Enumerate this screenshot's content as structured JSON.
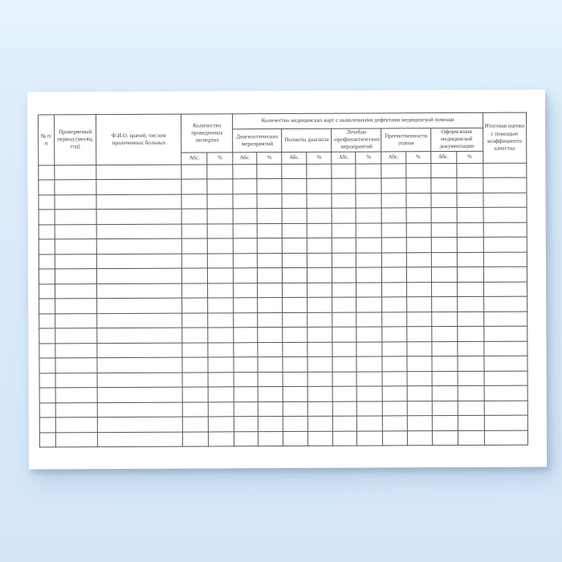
{
  "document": {
    "kind": "blank medical quality-control register form",
    "paper_color": "#ffffff",
    "background_top_color": "#e9f3fc",
    "background_bottom_color": "#d3e5f7",
    "grid_color": "#55555a",
    "text_color": "#3c3c42"
  },
  "table": {
    "banner": "Количество медицинских карт с выявленными дефектами медицинской помощи",
    "columns": {
      "num": "№ п/п",
      "period": "Проверяемый период (месяц, год)",
      "fio": "Ф.И.О. врачей, числом пролеченных больных",
      "expertise": "Количество проведенных экспертиз",
      "total": "Итоговая оценка с помощью коэффициента качества"
    },
    "defect_groups": [
      {
        "label": "Диагностических мероприятий"
      },
      {
        "label": "Полноты диагноза"
      },
      {
        "label": "Лечебно -профилактических мероприятий"
      },
      {
        "label": "Преемственности этапов"
      },
      {
        "label": "Оформления медицинской документации"
      }
    ],
    "abs_label": "Абс.",
    "pct_label": "%",
    "body_rows": 19,
    "body_columns": 16
  }
}
